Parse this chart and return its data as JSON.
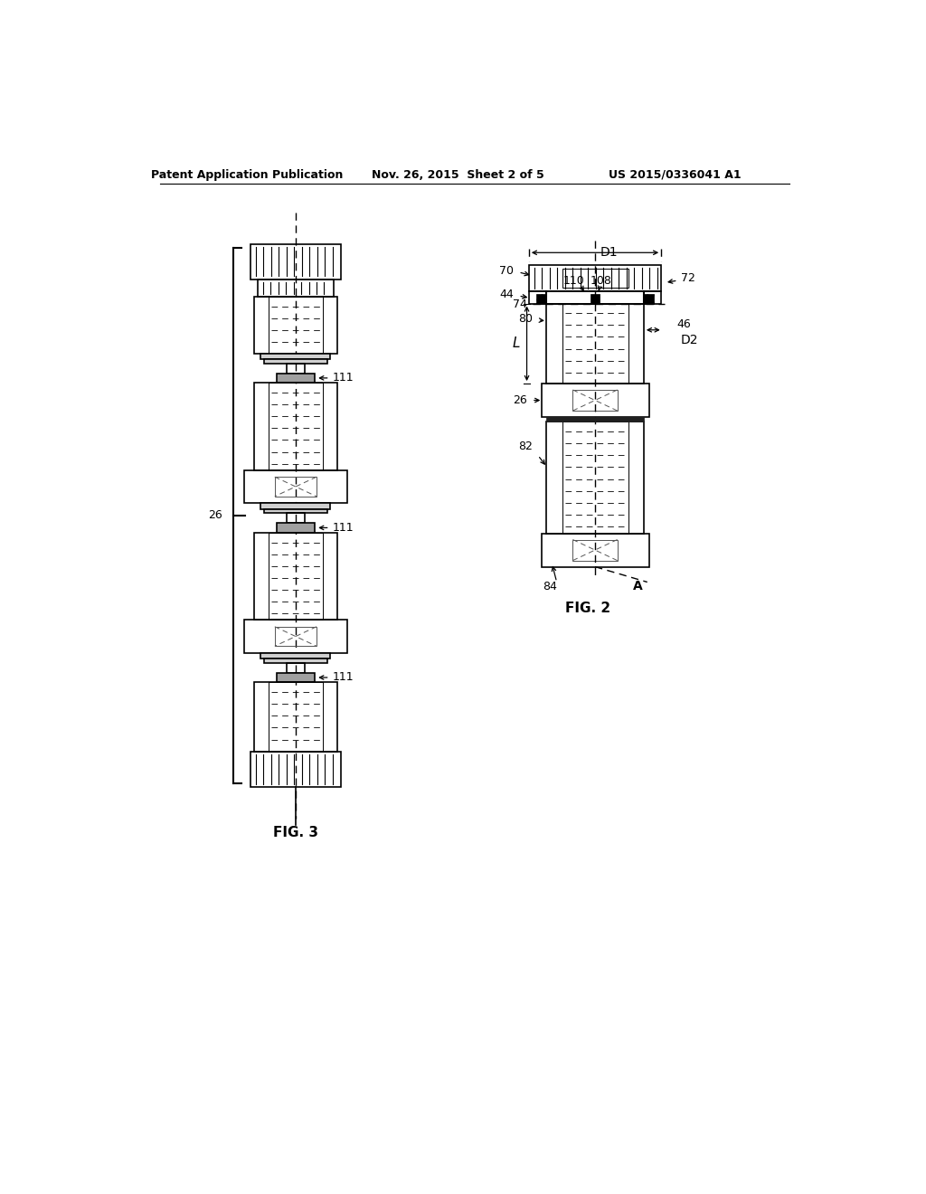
{
  "bg_color": "#ffffff",
  "title_left": "Patent Application Publication",
  "title_mid": "Nov. 26, 2015  Sheet 2 of 5",
  "title_right": "US 2015/0336041 A1",
  "fig2_label": "FIG. 2",
  "fig3_label": "FIG. 3"
}
